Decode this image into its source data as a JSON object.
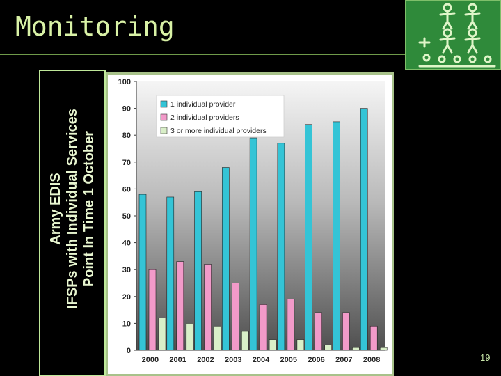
{
  "slide": {
    "title": "Monitoring",
    "page_number": "19",
    "y_label_lines": [
      "Army EDIS",
      "IFSPs with Individual Services",
      "Point In Time 1 October"
    ]
  },
  "colors": {
    "background": "#000000",
    "title": "#d9f2a6",
    "series_1": "#34c4d6",
    "series_2": "#f29ac9",
    "series_3": "#d9efc8",
    "logo_bg": "#2f8a3a"
  },
  "chart_data": {
    "type": "bar",
    "categories": [
      "2000",
      "2001",
      "2002",
      "2003",
      "2004",
      "2005",
      "2006",
      "2007",
      "2008"
    ],
    "series": [
      {
        "name": "1 individual provider",
        "values": [
          58,
          57,
          59,
          68,
          79,
          77,
          84,
          85,
          90
        ]
      },
      {
        "name": "2 individual providers",
        "values": [
          30,
          33,
          32,
          25,
          17,
          19,
          14,
          14,
          9
        ]
      },
      {
        "name": "3 or more individual providers",
        "values": [
          12,
          10,
          9,
          7,
          4,
          4,
          2,
          1,
          1
        ]
      }
    ],
    "ylim": [
      0,
      100
    ],
    "yticks": [
      "0",
      "10",
      "20",
      "30",
      "40",
      "50",
      "60",
      "70",
      "80",
      "90",
      "100"
    ],
    "ylabel": "Army EDIS IFSPs with Individual Services Point In Time 1 October",
    "legend_position": "top-left",
    "grid": false
  }
}
